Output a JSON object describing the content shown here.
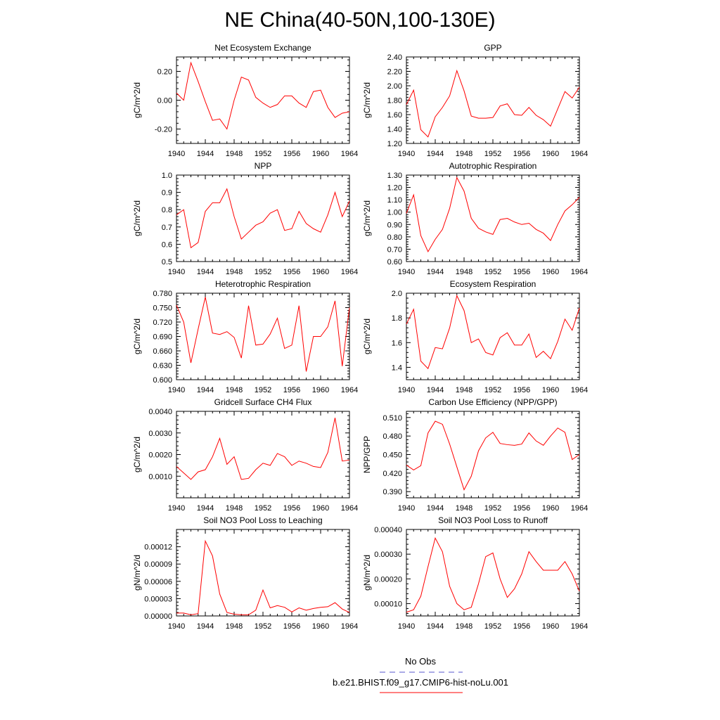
{
  "figure": {
    "title": "NE China(40-50N,100-130E)",
    "legend": [
      {
        "label": "No Obs",
        "color": "#5555cc",
        "style": "dashed"
      },
      {
        "label": "b.e21.BHIST.f09_g17.CMIP6-hist-noLu.001",
        "color": "#ff0000",
        "style": "solid"
      }
    ],
    "series_color": "#ff0000"
  },
  "chart_data": [
    {
      "type": "line",
      "title": "Net Ecosystem Exchange",
      "ylabel": "gC/m^2/d",
      "xlabel": "",
      "xlim": [
        1940,
        1964
      ],
      "ylim": [
        -0.3,
        0.3
      ],
      "xticks": [
        1940,
        1944,
        1948,
        1952,
        1956,
        1960,
        1964
      ],
      "xtick_labels": [
        "1940",
        "1944",
        "1948",
        "1952",
        "1956",
        "1960",
        "1964"
      ],
      "yticks": [
        -0.2,
        0.0,
        0.2
      ],
      "ytick_labels": [
        "-0.20",
        "0.00",
        "0.20"
      ],
      "x": [
        1940,
        1941,
        1942,
        1943,
        1944,
        1945,
        1946,
        1947,
        1948,
        1949,
        1950,
        1951,
        1952,
        1953,
        1954,
        1955,
        1956,
        1957,
        1958,
        1959,
        1960,
        1961,
        1962,
        1963,
        1964
      ],
      "y": [
        0.05,
        0.0,
        0.26,
        0.13,
        -0.01,
        -0.14,
        -0.13,
        -0.2,
        0.0,
        0.16,
        0.14,
        0.02,
        -0.02,
        -0.05,
        -0.03,
        0.03,
        0.03,
        -0.02,
        -0.05,
        0.06,
        0.07,
        -0.05,
        -0.12,
        -0.09,
        -0.08
      ]
    },
    {
      "type": "line",
      "title": "GPP",
      "ylabel": "gC/m^2/d",
      "xlabel": "",
      "xlim": [
        1940,
        1964
      ],
      "ylim": [
        1.2,
        2.4
      ],
      "xticks": [
        1940,
        1944,
        1948,
        1952,
        1956,
        1960,
        1964
      ],
      "xtick_labels": [
        "1940",
        "1944",
        "1948",
        "1952",
        "1956",
        "1960",
        "1964"
      ],
      "yticks": [
        1.2,
        1.4,
        1.6,
        1.8,
        2.0,
        2.2,
        2.4
      ],
      "ytick_labels": [
        "1.20",
        "1.40",
        "1.60",
        "1.80",
        "2.00",
        "2.20",
        "2.40"
      ],
      "x": [
        1940,
        1941,
        1942,
        1943,
        1944,
        1945,
        1946,
        1947,
        1948,
        1949,
        1950,
        1951,
        1952,
        1953,
        1954,
        1955,
        1956,
        1957,
        1958,
        1959,
        1960,
        1961,
        1962,
        1963,
        1964
      ],
      "y": [
        1.74,
        1.94,
        1.39,
        1.29,
        1.57,
        1.7,
        1.86,
        2.21,
        1.93,
        1.58,
        1.55,
        1.55,
        1.56,
        1.72,
        1.75,
        1.6,
        1.59,
        1.7,
        1.59,
        1.53,
        1.44,
        1.68,
        1.92,
        1.83,
        1.98
      ]
    },
    {
      "type": "line",
      "title": "NPP",
      "ylabel": "gC/m^2/d",
      "xlabel": "",
      "xlim": [
        1940,
        1964
      ],
      "ylim": [
        0.5,
        1.0
      ],
      "xticks": [
        1940,
        1944,
        1948,
        1952,
        1956,
        1960,
        1964
      ],
      "xtick_labels": [
        "1940",
        "1944",
        "1948",
        "1952",
        "1956",
        "1960",
        "1964"
      ],
      "yticks": [
        0.5,
        0.6,
        0.7,
        0.8,
        0.9,
        1.0
      ],
      "ytick_labels": [
        "0.5",
        "0.6",
        "0.7",
        "0.8",
        "0.9",
        "1.0"
      ],
      "x": [
        1940,
        1941,
        1942,
        1943,
        1944,
        1945,
        1946,
        1947,
        1948,
        1949,
        1950,
        1951,
        1952,
        1953,
        1954,
        1955,
        1956,
        1957,
        1958,
        1959,
        1960,
        1961,
        1962,
        1963,
        1964
      ],
      "y": [
        0.77,
        0.8,
        0.58,
        0.61,
        0.79,
        0.84,
        0.84,
        0.92,
        0.76,
        0.63,
        0.67,
        0.71,
        0.73,
        0.78,
        0.8,
        0.68,
        0.69,
        0.79,
        0.72,
        0.69,
        0.67,
        0.77,
        0.9,
        0.76,
        0.85
      ]
    },
    {
      "type": "line",
      "title": "Autotrophic Respiration",
      "ylabel": "gC/m^2/d",
      "xlabel": "",
      "xlim": [
        1940,
        1964
      ],
      "ylim": [
        0.6,
        1.3
      ],
      "xticks": [
        1940,
        1944,
        1948,
        1952,
        1956,
        1960,
        1964
      ],
      "xtick_labels": [
        "1940",
        "1944",
        "1948",
        "1952",
        "1956",
        "1960",
        "1964"
      ],
      "yticks": [
        0.6,
        0.7,
        0.8,
        0.9,
        1.0,
        1.1,
        1.2,
        1.3
      ],
      "ytick_labels": [
        "0.60",
        "0.70",
        "0.80",
        "0.90",
        "1.00",
        "1.10",
        "1.20",
        "1.30"
      ],
      "x": [
        1940,
        1941,
        1942,
        1943,
        1944,
        1945,
        1946,
        1947,
        1948,
        1949,
        1950,
        1951,
        1952,
        1953,
        1954,
        1955,
        1956,
        1957,
        1958,
        1959,
        1960,
        1961,
        1962,
        1963,
        1964
      ],
      "y": [
        0.99,
        1.14,
        0.81,
        0.68,
        0.78,
        0.86,
        1.03,
        1.28,
        1.17,
        0.95,
        0.87,
        0.84,
        0.82,
        0.94,
        0.95,
        0.92,
        0.9,
        0.91,
        0.86,
        0.83,
        0.77,
        0.9,
        1.01,
        1.06,
        1.12
      ]
    },
    {
      "type": "line",
      "title": "Heterotrophic Respiration",
      "ylabel": "gC/m^2/d",
      "xlabel": "",
      "xlim": [
        1940,
        1964
      ],
      "ylim": [
        0.6,
        0.78
      ],
      "xticks": [
        1940,
        1944,
        1948,
        1952,
        1956,
        1960,
        1964
      ],
      "xtick_labels": [
        "1940",
        "1944",
        "1948",
        "1952",
        "1956",
        "1960",
        "1964"
      ],
      "yticks": [
        0.6,
        0.63,
        0.66,
        0.69,
        0.72,
        0.75,
        0.78
      ],
      "ytick_labels": [
        "0.600",
        "0.630",
        "0.660",
        "0.690",
        "0.720",
        "0.750",
        "0.780"
      ],
      "x": [
        1940,
        1941,
        1942,
        1943,
        1944,
        1945,
        1946,
        1947,
        1948,
        1949,
        1950,
        1951,
        1952,
        1953,
        1954,
        1955,
        1956,
        1957,
        1958,
        1959,
        1960,
        1961,
        1962,
        1963,
        1964
      ],
      "y": [
        0.755,
        0.72,
        0.635,
        0.705,
        0.772,
        0.697,
        0.694,
        0.7,
        0.688,
        0.645,
        0.754,
        0.672,
        0.674,
        0.695,
        0.728,
        0.665,
        0.672,
        0.754,
        0.617,
        0.69,
        0.69,
        0.71,
        0.764,
        0.628,
        0.75
      ]
    },
    {
      "type": "line",
      "title": "Ecosystem Respiration",
      "ylabel": "gC/m^2/d",
      "xlabel": "",
      "xlim": [
        1940,
        1964
      ],
      "ylim": [
        1.3,
        2.0
      ],
      "xticks": [
        1940,
        1944,
        1948,
        1952,
        1956,
        1960,
        1964
      ],
      "xtick_labels": [
        "1940",
        "1944",
        "1948",
        "1952",
        "1956",
        "1960",
        "1964"
      ],
      "yticks": [
        1.4,
        1.6,
        1.8,
        2.0
      ],
      "ytick_labels": [
        "1.4",
        "1.6",
        "1.8",
        "2.0"
      ],
      "x": [
        1940,
        1941,
        1942,
        1943,
        1944,
        1945,
        1946,
        1947,
        1948,
        1949,
        1950,
        1951,
        1952,
        1953,
        1954,
        1955,
        1956,
        1957,
        1958,
        1959,
        1960,
        1961,
        1962,
        1963,
        1964
      ],
      "y": [
        1.75,
        1.87,
        1.45,
        1.39,
        1.56,
        1.55,
        1.72,
        1.98,
        1.86,
        1.6,
        1.63,
        1.52,
        1.5,
        1.64,
        1.68,
        1.58,
        1.58,
        1.67,
        1.48,
        1.53,
        1.47,
        1.61,
        1.79,
        1.7,
        1.88
      ]
    },
    {
      "type": "line",
      "title": "Gridcell Surface CH4 Flux",
      "ylabel": "gC/m^2/d",
      "xlabel": "",
      "xlim": [
        1940,
        1964
      ],
      "ylim": [
        0.0,
        0.004
      ],
      "xticks": [
        1940,
        1944,
        1948,
        1952,
        1956,
        1960,
        1964
      ],
      "xtick_labels": [
        "1940",
        "1944",
        "1948",
        "1952",
        "1956",
        "1960",
        "1964"
      ],
      "yticks": [
        0.001,
        0.002,
        0.003,
        0.004
      ],
      "ytick_labels": [
        "0.0010",
        "0.0020",
        "0.0030",
        "0.0040"
      ],
      "x": [
        1940,
        1941,
        1942,
        1943,
        1944,
        1945,
        1946,
        1947,
        1948,
        1949,
        1950,
        1951,
        1952,
        1953,
        1954,
        1955,
        1956,
        1957,
        1958,
        1959,
        1960,
        1961,
        1962,
        1963,
        1964
      ],
      "y": [
        0.00145,
        0.00115,
        0.00085,
        0.0012,
        0.0013,
        0.0019,
        0.00275,
        0.00155,
        0.0019,
        0.00085,
        0.0009,
        0.0013,
        0.0016,
        0.0015,
        0.00205,
        0.0019,
        0.0015,
        0.0017,
        0.0016,
        0.00145,
        0.0014,
        0.0021,
        0.0037,
        0.0017,
        0.00175
      ]
    },
    {
      "type": "line",
      "title": "Carbon Use Efficiency (NPP/GPP)",
      "ylabel": "NPP/GPP",
      "xlabel": "",
      "xlim": [
        1940,
        1964
      ],
      "ylim": [
        0.38,
        0.52
      ],
      "xticks": [
        1940,
        1944,
        1948,
        1952,
        1956,
        1960,
        1964
      ],
      "xtick_labels": [
        "1940",
        "1944",
        "1948",
        "1952",
        "1956",
        "1960",
        "1964"
      ],
      "yticks": [
        0.39,
        0.42,
        0.45,
        0.48,
        0.51
      ],
      "ytick_labels": [
        "0.390",
        "0.420",
        "0.450",
        "0.480",
        "0.510"
      ],
      "x": [
        1940,
        1941,
        1942,
        1943,
        1944,
        1945,
        1946,
        1947,
        1948,
        1949,
        1950,
        1951,
        1952,
        1953,
        1954,
        1955,
        1956,
        1957,
        1958,
        1959,
        1960,
        1961,
        1962,
        1963,
        1964
      ],
      "y": [
        0.433,
        0.425,
        0.432,
        0.485,
        0.504,
        0.499,
        0.467,
        0.43,
        0.393,
        0.415,
        0.456,
        0.477,
        0.486,
        0.468,
        0.466,
        0.465,
        0.467,
        0.485,
        0.472,
        0.465,
        0.48,
        0.493,
        0.486,
        0.442,
        0.45
      ]
    },
    {
      "type": "line",
      "title": "Soil NO3 Pool Loss to Leaching",
      "ylabel": "gN/m^2/d",
      "xlabel": "",
      "xlim": [
        1940,
        1964
      ],
      "ylim": [
        0.0,
        0.00015
      ],
      "xticks": [
        1940,
        1944,
        1948,
        1952,
        1956,
        1960,
        1964
      ],
      "xtick_labels": [
        "1940",
        "1944",
        "1948",
        "1952",
        "1956",
        "1960",
        "1964"
      ],
      "yticks": [
        0.0,
        3e-05,
        6e-05,
        9e-05,
        0.00012
      ],
      "ytick_labels": [
        "0.00000",
        "0.00003",
        "0.00006",
        "0.00009",
        "0.00012"
      ],
      "x": [
        1940,
        1941,
        1942,
        1943,
        1944,
        1945,
        1946,
        1947,
        1948,
        1949,
        1950,
        1951,
        1952,
        1953,
        1954,
        1955,
        1956,
        1957,
        1958,
        1959,
        1960,
        1961,
        1962,
        1963,
        1964
      ],
      "y": [
        5e-06,
        5e-06,
        2e-06,
        4e-06,
        0.00013,
        0.000104,
        3.8e-05,
        6e-06,
        3e-06,
        2e-06,
        2e-06,
        1e-05,
        4.5e-05,
        1.4e-05,
        1.8e-05,
        1.5e-05,
        7e-06,
        1.4e-05,
        1e-05,
        1.3e-05,
        1.5e-05,
        1.6e-05,
        2.3e-05,
        1.2e-05,
        6e-06
      ]
    },
    {
      "type": "line",
      "title": "Soil NO3 Pool Loss to Runoff",
      "ylabel": "gN/m^2/d",
      "xlabel": "",
      "xlim": [
        1940,
        1964
      ],
      "ylim": [
        5e-05,
        0.0004
      ],
      "xticks": [
        1940,
        1944,
        1948,
        1952,
        1956,
        1960,
        1964
      ],
      "xtick_labels": [
        "1940",
        "1944",
        "1948",
        "1952",
        "1956",
        "1960",
        "1964"
      ],
      "yticks": [
        0.0001,
        0.0002,
        0.0003,
        0.0004
      ],
      "ytick_labels": [
        "0.00010",
        "0.00020",
        "0.00030",
        "0.00040"
      ],
      "x": [
        1940,
        1941,
        1942,
        1943,
        1944,
        1945,
        1946,
        1947,
        1948,
        1949,
        1950,
        1951,
        1952,
        1953,
        1954,
        1955,
        1956,
        1957,
        1958,
        1959,
        1960,
        1961,
        1962,
        1963,
        1964
      ],
      "y": [
        6.5e-05,
        7.5e-05,
        0.00013,
        0.00025,
        0.000365,
        0.00031,
        0.00017,
        0.0001,
        7.5e-05,
        8.5e-05,
        0.00018,
        0.00029,
        0.000305,
        0.0002,
        0.000125,
        0.00016,
        0.00022,
        0.00031,
        0.00027,
        0.000235,
        0.000235,
        0.000235,
        0.00027,
        0.00022,
        0.00015
      ]
    }
  ]
}
